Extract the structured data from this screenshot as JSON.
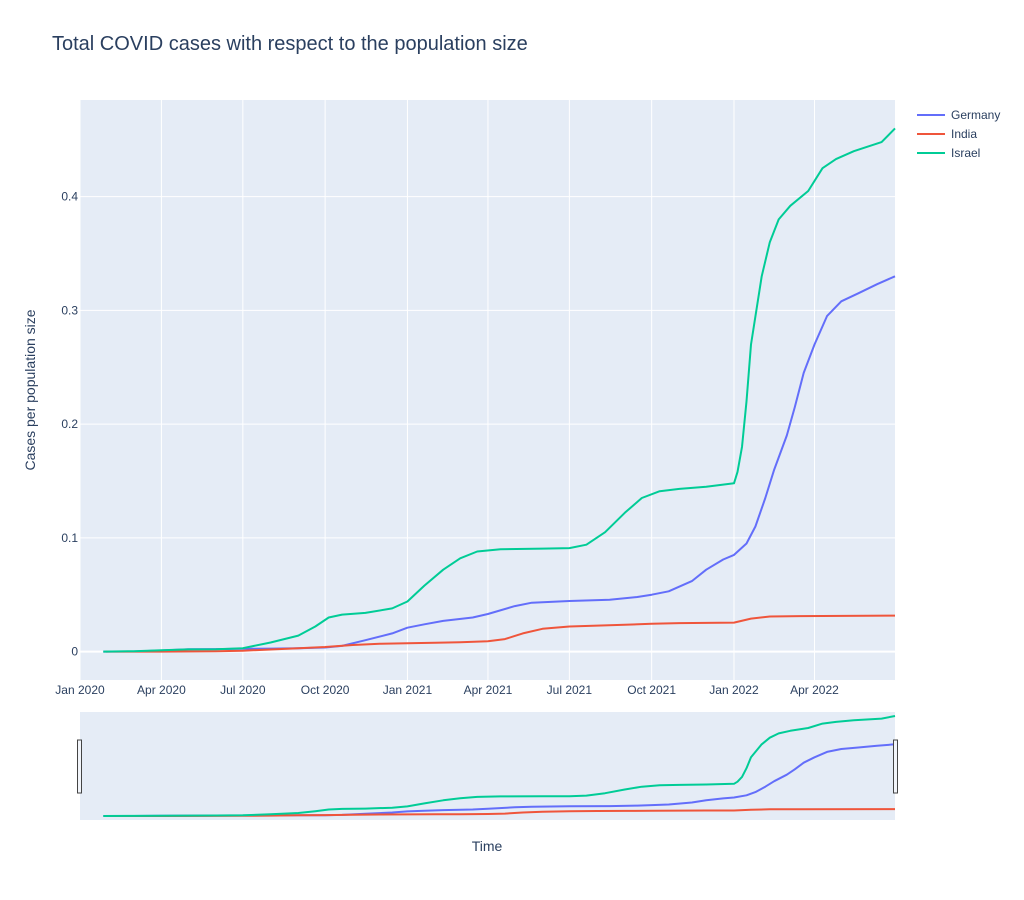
{
  "chart_data": {
    "type": "line",
    "title": "Total COVID cases with respect to the population size",
    "xlabel": "Time",
    "ylabel": "Cases per population size",
    "xlim": [
      "2020-01-01",
      "2022-06-30"
    ],
    "ylim": [
      -0.025,
      0.485
    ],
    "x_ticks": [
      "2020-01-01",
      "2020-04-01",
      "2020-07-01",
      "2020-10-01",
      "2021-01-01",
      "2021-04-01",
      "2021-07-01",
      "2021-10-01",
      "2022-01-01",
      "2022-04-01"
    ],
    "x_tick_labels": [
      "Jan 2020",
      "Apr 2020",
      "Jul 2020",
      "Oct 2020",
      "Jan 2021",
      "Apr 2021",
      "Jul 2021",
      "Oct 2021",
      "Jan 2022",
      "Apr 2022"
    ],
    "y_ticks": [
      0,
      0.1,
      0.2,
      0.3,
      0.4
    ],
    "y_tick_labels": [
      "0",
      "0.1",
      "0.2",
      "0.3",
      "0.4"
    ],
    "grid": true,
    "legend_position": "top-right",
    "range_slider": true,
    "series": [
      {
        "name": "Germany",
        "color": "#636efa",
        "points": [
          [
            "2020-01-27",
            0
          ],
          [
            "2020-03-01",
            0.0001
          ],
          [
            "2020-04-01",
            0.0009
          ],
          [
            "2020-05-01",
            0.002
          ],
          [
            "2020-06-01",
            0.0022
          ],
          [
            "2020-07-01",
            0.0024
          ],
          [
            "2020-08-01",
            0.0026
          ],
          [
            "2020-09-01",
            0.003
          ],
          [
            "2020-10-01",
            0.0036
          ],
          [
            "2020-10-20",
            0.005
          ],
          [
            "2020-11-15",
            0.01
          ],
          [
            "2020-12-15",
            0.016
          ],
          [
            "2021-01-01",
            0.021
          ],
          [
            "2021-01-20",
            0.024
          ],
          [
            "2021-02-10",
            0.027
          ],
          [
            "2021-03-15",
            0.03
          ],
          [
            "2021-04-01",
            0.033
          ],
          [
            "2021-05-01",
            0.04
          ],
          [
            "2021-05-20",
            0.043
          ],
          [
            "2021-07-01",
            0.0445
          ],
          [
            "2021-08-15",
            0.0455
          ],
          [
            "2021-09-15",
            0.048
          ],
          [
            "2021-10-01",
            0.05
          ],
          [
            "2021-10-20",
            0.053
          ],
          [
            "2021-11-15",
            0.062
          ],
          [
            "2021-12-01",
            0.072
          ],
          [
            "2021-12-20",
            0.081
          ],
          [
            "2022-01-01",
            0.085
          ],
          [
            "2022-01-15",
            0.095
          ],
          [
            "2022-01-25",
            0.11
          ],
          [
            "2022-02-05",
            0.135
          ],
          [
            "2022-02-15",
            0.16
          ],
          [
            "2022-03-01",
            0.19
          ],
          [
            "2022-03-10",
            0.215
          ],
          [
            "2022-03-20",
            0.245
          ],
          [
            "2022-04-01",
            0.27
          ],
          [
            "2022-04-15",
            0.295
          ],
          [
            "2022-05-01",
            0.308
          ],
          [
            "2022-05-20",
            0.315
          ],
          [
            "2022-06-10",
            0.323
          ],
          [
            "2022-06-30",
            0.33
          ]
        ]
      },
      {
        "name": "India",
        "color": "#ef553b",
        "points": [
          [
            "2020-01-30",
            0
          ],
          [
            "2020-04-01",
            0
          ],
          [
            "2020-06-01",
            0.0003
          ],
          [
            "2020-07-01",
            0.0008
          ],
          [
            "2020-08-01",
            0.0018
          ],
          [
            "2020-09-01",
            0.003
          ],
          [
            "2020-10-01",
            0.004
          ],
          [
            "2020-11-01",
            0.0058
          ],
          [
            "2020-12-01",
            0.0068
          ],
          [
            "2021-01-01",
            0.0074
          ],
          [
            "2021-02-01",
            0.0078
          ],
          [
            "2021-03-01",
            0.0082
          ],
          [
            "2021-04-01",
            0.009
          ],
          [
            "2021-04-20",
            0.011
          ],
          [
            "2021-05-10",
            0.016
          ],
          [
            "2021-06-01",
            0.02
          ],
          [
            "2021-07-01",
            0.022
          ],
          [
            "2021-08-01",
            0.0228
          ],
          [
            "2021-09-01",
            0.0236
          ],
          [
            "2021-10-01",
            0.0244
          ],
          [
            "2021-11-01",
            0.025
          ],
          [
            "2021-12-01",
            0.0252
          ],
          [
            "2022-01-01",
            0.0255
          ],
          [
            "2022-01-20",
            0.029
          ],
          [
            "2022-02-10",
            0.0308
          ],
          [
            "2022-03-15",
            0.0312
          ],
          [
            "2022-06-30",
            0.0316
          ]
        ]
      },
      {
        "name": "Israel",
        "color": "#00cc96",
        "points": [
          [
            "2020-01-27",
            0
          ],
          [
            "2020-03-01",
            0.0003
          ],
          [
            "2020-04-01",
            0.0012
          ],
          [
            "2020-05-01",
            0.0019
          ],
          [
            "2020-06-01",
            0.0021
          ],
          [
            "2020-07-01",
            0.003
          ],
          [
            "2020-08-01",
            0.008
          ],
          [
            "2020-09-01",
            0.014
          ],
          [
            "2020-09-20",
            0.022
          ],
          [
            "2020-10-05",
            0.03
          ],
          [
            "2020-10-20",
            0.0325
          ],
          [
            "2020-11-15",
            0.034
          ],
          [
            "2020-12-15",
            0.038
          ],
          [
            "2021-01-01",
            0.044
          ],
          [
            "2021-01-20",
            0.058
          ],
          [
            "2021-02-10",
            0.072
          ],
          [
            "2021-03-01",
            0.082
          ],
          [
            "2021-03-20",
            0.088
          ],
          [
            "2021-04-15",
            0.09
          ],
          [
            "2021-06-01",
            0.0905
          ],
          [
            "2021-07-01",
            0.091
          ],
          [
            "2021-07-20",
            0.094
          ],
          [
            "2021-08-10",
            0.105
          ],
          [
            "2021-09-01",
            0.122
          ],
          [
            "2021-09-20",
            0.135
          ],
          [
            "2021-10-10",
            0.141
          ],
          [
            "2021-11-01",
            0.143
          ],
          [
            "2021-12-01",
            0.145
          ],
          [
            "2022-01-01",
            0.148
          ],
          [
            "2022-01-05",
            0.158
          ],
          [
            "2022-01-10",
            0.18
          ],
          [
            "2022-01-15",
            0.22
          ],
          [
            "2022-01-20",
            0.27
          ],
          [
            "2022-02-01",
            0.33
          ],
          [
            "2022-02-10",
            0.36
          ],
          [
            "2022-02-20",
            0.38
          ],
          [
            "2022-03-05",
            0.392
          ],
          [
            "2022-03-25",
            0.405
          ],
          [
            "2022-04-10",
            0.425
          ],
          [
            "2022-04-25",
            0.433
          ],
          [
            "2022-05-15",
            0.44
          ],
          [
            "2022-06-15",
            0.448
          ],
          [
            "2022-06-30",
            0.46
          ]
        ]
      }
    ]
  }
}
